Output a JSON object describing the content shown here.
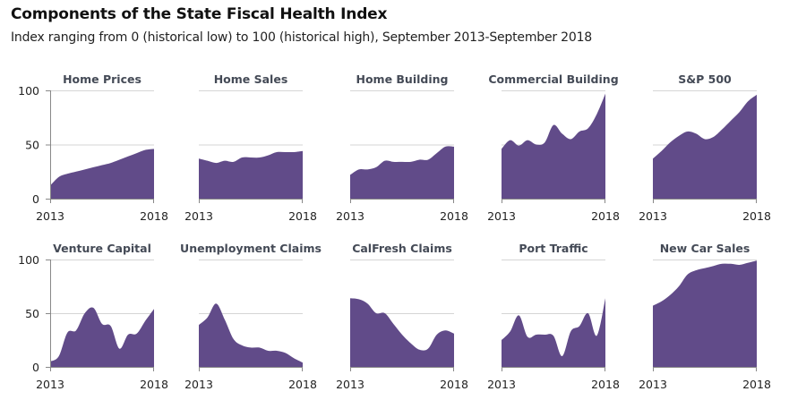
{
  "header": {
    "title": "Components of the State Fiscal Health Index",
    "subtitle": "Index ranging from 0 (historical low) to 100 (historical high), September 2013-September 2018"
  },
  "colors": {
    "fill": "#614b89",
    "grid": "#d5d5d5",
    "axis": "#888888"
  },
  "chart_data": [
    {
      "type": "area",
      "title": "Home Prices",
      "x_ticks": [
        "2013",
        "2018"
      ],
      "y_ticks": [
        "0",
        "50",
        "100"
      ],
      "ylim": [
        0,
        100
      ],
      "xlim": [
        "Sep 2013",
        "Sep 2018"
      ],
      "grid": true,
      "values": [
        12,
        20,
        23,
        25,
        27,
        29,
        31,
        33,
        36,
        39,
        42,
        45,
        46
      ]
    },
    {
      "type": "area",
      "title": "Home Sales",
      "x_ticks": [
        "2013",
        "2018"
      ],
      "ylim": [
        0,
        100
      ],
      "grid": true,
      "values": [
        37,
        35,
        33,
        35,
        34,
        38,
        38,
        38,
        40,
        43,
        43,
        43,
        44
      ]
    },
    {
      "type": "area",
      "title": "Home Building",
      "x_ticks": [
        "2013",
        "2018"
      ],
      "ylim": [
        0,
        100
      ],
      "grid": true,
      "values": [
        22,
        27,
        27,
        29,
        35,
        34,
        34,
        34,
        36,
        36,
        42,
        48,
        48
      ]
    },
    {
      "type": "area",
      "title": "Commercial Building",
      "x_ticks": [
        "2013",
        "2018"
      ],
      "ylim": [
        0,
        100
      ],
      "grid": true,
      "values": [
        46,
        54,
        49,
        54,
        50,
        52,
        68,
        60,
        55,
        62,
        65,
        78,
        97
      ]
    },
    {
      "type": "area",
      "title": "S&P 500",
      "x_ticks": [
        "2013",
        "2018"
      ],
      "ylim": [
        0,
        100
      ],
      "grid": true,
      "values": [
        37,
        44,
        52,
        58,
        62,
        60,
        55,
        57,
        64,
        72,
        80,
        90,
        96
      ]
    },
    {
      "type": "area",
      "title": "Venture Capital",
      "x_ticks": [
        "2013",
        "2018"
      ],
      "y_ticks": [
        "0",
        "50",
        "100"
      ],
      "ylim": [
        0,
        100
      ],
      "grid": true,
      "values": [
        5,
        10,
        32,
        34,
        50,
        55,
        40,
        38,
        17,
        30,
        31,
        43,
        54
      ]
    },
    {
      "type": "area",
      "title": "Unemployment Claims",
      "x_ticks": [
        "2013",
        "2018"
      ],
      "ylim": [
        0,
        100
      ],
      "grid": true,
      "values": [
        39,
        46,
        59,
        44,
        26,
        20,
        18,
        18,
        15,
        15,
        13,
        8,
        4
      ]
    },
    {
      "type": "area",
      "title": "CalFresh Claims",
      "x_ticks": [
        "2013",
        "2018"
      ],
      "ylim": [
        0,
        100
      ],
      "grid": true,
      "values": [
        64,
        63,
        59,
        50,
        50,
        40,
        30,
        22,
        16,
        17,
        30,
        34,
        31
      ]
    },
    {
      "type": "area",
      "title": "Port Traffic",
      "x_ticks": [
        "2013",
        "2018"
      ],
      "ylim": [
        0,
        100
      ],
      "grid": true,
      "values": [
        25,
        33,
        48,
        28,
        30,
        30,
        29,
        10,
        33,
        38,
        50,
        29,
        64
      ]
    },
    {
      "type": "area",
      "title": "New Car Sales",
      "x_ticks": [
        "2013",
        "2018"
      ],
      "ylim": [
        0,
        100
      ],
      "grid": true,
      "values": [
        57,
        61,
        67,
        75,
        86,
        90,
        92,
        94,
        96,
        96,
        95,
        97,
        99
      ]
    }
  ]
}
